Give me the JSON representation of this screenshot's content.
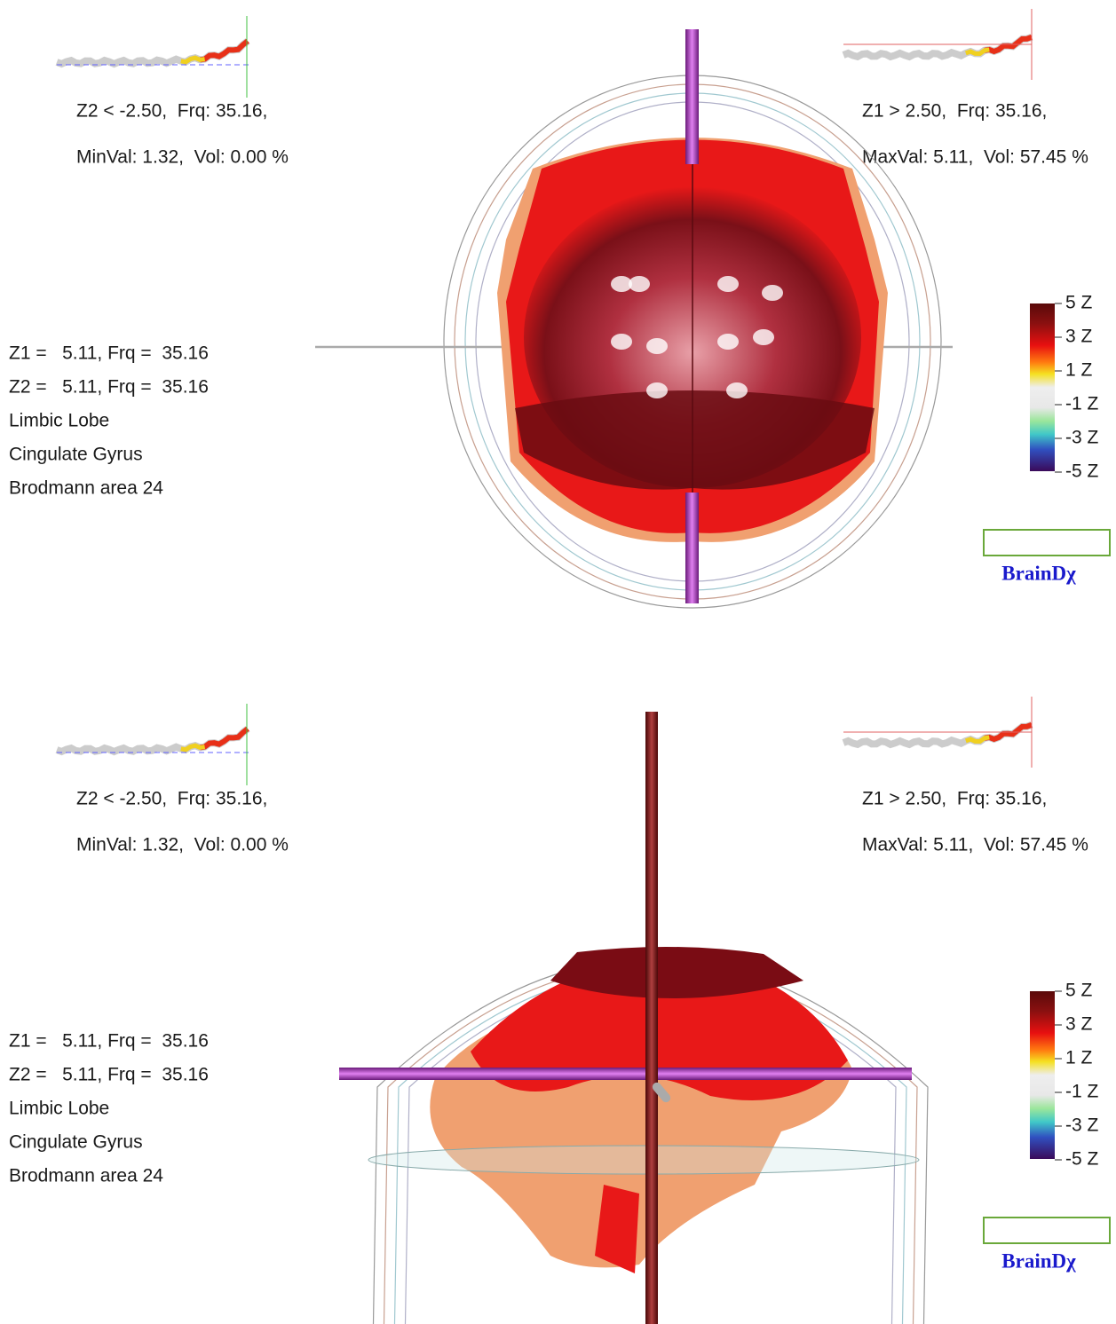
{
  "panels": [
    {
      "min_summary": [
        "Z2 < -2.50,  Frq: 35.16,",
        "MinVal: 1.32,  Vol: 0.00 %"
      ],
      "max_summary": [
        "Z1 > 2.50,  Frq: 35.16,",
        "MaxVal: 5.11,  Vol: 57.45 %"
      ],
      "location": [
        "Z1 =   5.11, Frq =  35.16",
        "Z2 =   5.11, Frq =  35.16",
        "Limbic Lobe",
        "Cingulate Gyrus",
        "Brodmann area 24"
      ],
      "colorbar_labels": [
        "5 Z",
        "3 Z",
        "1 Z",
        "-1 Z",
        "-3 Z",
        "-5 Z"
      ],
      "brand": "BrainDχ"
    },
    {
      "min_summary": [
        "Z2 < -2.50,  Frq: 35.16,",
        "MinVal: 1.32,  Vol: 0.00 %"
      ],
      "max_summary": [
        "Z1 > 2.50,  Frq: 35.16,",
        "MaxVal: 5.11,  Vol: 57.45 %"
      ],
      "location": [
        "Z1 =   5.11, Frq =  35.16",
        "Z2 =   5.11, Frq =  35.16",
        "Limbic Lobe",
        "Cingulate Gyrus",
        "Brodmann area 24"
      ],
      "colorbar_labels": [
        "5 Z",
        "3 Z",
        "1 Z",
        "-1 Z",
        "-3 Z",
        "-5 Z"
      ],
      "brand": "BrainDχ"
    }
  ]
}
